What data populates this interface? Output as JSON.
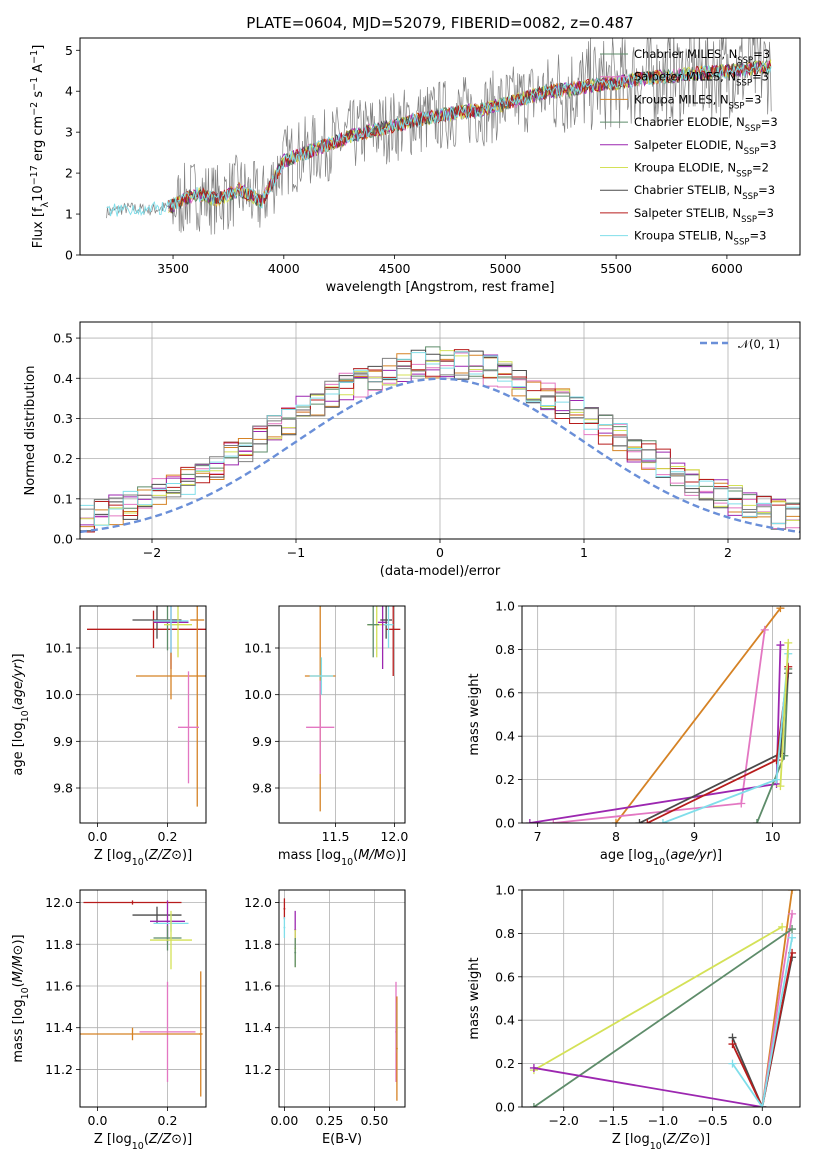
{
  "figure": {
    "title": "PLATE=0604, MJD=52079, FIBERID=0082, z=0.487"
  },
  "colors": [
    "#e377c2",
    "#ff7f0e",
    "#1f77b4",
    "#d62728",
    "#9467bd",
    "#bcbd22",
    "#7f7f7f",
    "#e377c2",
    "#17becf"
  ],
  "chart_data": [
    {
      "id": "spectrum",
      "type": "line",
      "xlabel": "wavelength [Angstrom, rest frame]",
      "ylabel": "Flux [f$_λ$10$^{-17}$ erg cm$^{-2}$ s$^{-1}$ A$^{-1}$]",
      "ylabel_parts": [
        "Flux [f",
        "λ",
        "10",
        "−17",
        " erg cm",
        "−2",
        " s",
        "−1",
        " A",
        "−1",
        "]"
      ],
      "xlim": [
        3080,
        6330
      ],
      "ylim": [
        0,
        5.3
      ],
      "xticks": [
        3500,
        4000,
        4500,
        5000,
        5500,
        6000
      ],
      "xtick_labels": [
        "3500",
        "4000",
        "4500",
        "5000",
        "5500",
        "6000"
      ],
      "yticks": [
        0,
        1,
        2,
        3,
        4,
        5
      ],
      "ytick_labels": [
        "0",
        "1",
        "2",
        "3",
        "4",
        "5"
      ],
      "grid": false,
      "legend_position": "top-right",
      "series": [
        {
          "name": "Chabrier MILES",
          "nssp": "3",
          "color": "#5e8c6a"
        },
        {
          "name": "Salpeter MILES",
          "nssp": "3",
          "color": "#e377c2"
        },
        {
          "name": "Kroupa MILES",
          "nssp": "3",
          "color": "#d58225"
        },
        {
          "name": "Chabrier ELODIE",
          "nssp": "3",
          "color": "#5e8c6a"
        },
        {
          "name": "Salpeter ELODIE",
          "nssp": "3",
          "color": "#9c27b0"
        },
        {
          "name": "Kroupa ELODIE",
          "nssp": "2",
          "color": "#d4e157"
        },
        {
          "name": "Chabrier STELIB",
          "nssp": "3",
          "color": "#4a4a4a"
        },
        {
          "name": "Salpeter STELIB",
          "nssp": "3",
          "color": "#b71c1c"
        },
        {
          "name": "Kroupa STELIB",
          "nssp": "3",
          "color": "#80deea"
        }
      ],
      "model_continuum": {
        "x": [
          3200,
          3300,
          3400,
          3500,
          3600,
          3700,
          3800,
          3900,
          4000,
          4100,
          4200,
          4300,
          4400,
          4500,
          4600,
          4700,
          4800,
          4900,
          5000,
          5100,
          5200,
          5300,
          5400,
          5500,
          5600,
          5700,
          5800,
          5900,
          6000,
          6100,
          6200
        ],
        "y": [
          1.05,
          1.15,
          1.1,
          1.2,
          1.5,
          1.35,
          1.6,
          1.3,
          2.3,
          2.5,
          2.7,
          2.9,
          3.05,
          3.15,
          3.3,
          3.4,
          3.5,
          3.55,
          3.7,
          3.85,
          4.0,
          4.05,
          4.15,
          4.2,
          4.3,
          4.35,
          4.4,
          4.45,
          4.5,
          4.55,
          4.6
        ]
      },
      "data_noise_amplitude": 0.9
    },
    {
      "id": "residuals",
      "type": "bar",
      "xlabel": "(data-model)/error",
      "ylabel": "Normed distribution",
      "xlim": [
        -2.5,
        2.5
      ],
      "ylim": [
        0,
        0.54
      ],
      "xticks": [
        -2,
        -1,
        0,
        1,
        2
      ],
      "xtick_labels": [
        "−2",
        "−1",
        "0",
        "1",
        "2"
      ],
      "yticks": [
        0.0,
        0.1,
        0.2,
        0.3,
        0.4,
        0.5
      ],
      "ytick_labels": [
        "0.0",
        "0.1",
        "0.2",
        "0.3",
        "0.4",
        "0.5"
      ],
      "grid": true,
      "legend": "𝒩(0, 1)",
      "legend_position": "top-right",
      "bin_width": 0.1,
      "bin_start": -2.5,
      "gaussian": {
        "mu": 0,
        "sigma": 1,
        "color": "#6a8fd8"
      }
    },
    {
      "id": "z-age",
      "type": "scatter",
      "xlabel": "Z [log10(Z/Z⊙)]",
      "ylabel": "age  [log10(age/yr)]",
      "xlim": [
        -0.05,
        0.31
      ],
      "ylim": [
        9.725,
        10.19
      ],
      "xticks": [
        0.0,
        0.2
      ],
      "xtick_labels": [
        "0.0",
        "0.2"
      ],
      "yticks": [
        9.8,
        9.9,
        10.0,
        10.1
      ],
      "ytick_labels": [
        "9.8",
        "9.9",
        "10.0",
        "10.1"
      ],
      "grid": true,
      "points": [
        {
          "x": 0.16,
          "y": 10.14,
          "xerr": 0.19,
          "yerr": 0.04,
          "color": "#b71c1c"
        },
        {
          "x": 0.17,
          "y": 10.16,
          "xerr": 0.07,
          "yerr": 0.04,
          "color": "#4a4a4a"
        },
        {
          "x": 0.2,
          "y": 10.155,
          "xerr": 0.04,
          "yerr": 0.06,
          "color": "#5e8c6a"
        },
        {
          "x": 0.21,
          "y": 10.155,
          "xerr": 0.05,
          "yerr": 0.1,
          "color": "#9c27b0"
        },
        {
          "x": 0.23,
          "y": 10.15,
          "xerr": 0.04,
          "yerr": 0.07,
          "color": "#d4e157"
        },
        {
          "x": 0.21,
          "y": 10.158,
          "xerr": 0.05,
          "yerr": 0.07,
          "color": "#80deea"
        },
        {
          "x": 0.21,
          "y": 10.04,
          "xerr": 0.1,
          "yerr": 0.05,
          "color": "#d58225"
        },
        {
          "x": 0.285,
          "y": 10.16,
          "xerr": 0.02,
          "yerr": 0.4,
          "color": "#d58225"
        },
        {
          "x": 0.26,
          "y": 9.93,
          "xerr": 0.03,
          "yerr": 0.12,
          "color": "#e377c2"
        }
      ]
    },
    {
      "id": "mass-age",
      "type": "scatter",
      "xlabel": "mass [log10(M/M⊙)]",
      "ylabel": "",
      "xlim": [
        11.02,
        12.09
      ],
      "ylim": [
        9.725,
        10.19
      ],
      "xticks": [
        11.5,
        12.0
      ],
      "xtick_labels": [
        "11.5",
        "12.0"
      ],
      "yticks": [
        9.8,
        9.9,
        10.0,
        10.1
      ],
      "ytick_labels": [
        "9.8",
        "9.9",
        "10.0",
        "10.1"
      ],
      "grid": true,
      "points": [
        {
          "x": 11.37,
          "y": 10.04,
          "xerr": 0.13,
          "yerr": 0.29,
          "color": "#d58225"
        },
        {
          "x": 11.37,
          "y": 9.93,
          "xerr": 0.12,
          "yerr": 0.1,
          "color": "#e377c2"
        },
        {
          "x": 11.38,
          "y": 10.04,
          "xerr": 0.1,
          "yerr": 0.04,
          "color": "#80deea"
        },
        {
          "x": 11.85,
          "y": 10.15,
          "xerr": 0.08,
          "yerr": 0.07,
          "color": "#d4e157"
        },
        {
          "x": 11.82,
          "y": 10.15,
          "xerr": 0.05,
          "yerr": 0.07,
          "color": "#5e8c6a"
        },
        {
          "x": 11.9,
          "y": 10.155,
          "xerr": 0.04,
          "yerr": 0.1,
          "color": "#9c27b0"
        },
        {
          "x": 11.93,
          "y": 10.16,
          "xerr": 0.05,
          "yerr": 0.04,
          "color": "#4a4a4a"
        },
        {
          "x": 11.99,
          "y": 10.14,
          "xerr": 0.06,
          "yerr": 0.1,
          "color": "#b71c1c"
        },
        {
          "x": 11.95,
          "y": 10.15,
          "xerr": 0.04,
          "yerr": 0.05,
          "color": "#80deea"
        }
      ]
    },
    {
      "id": "age-weight",
      "type": "line",
      "xlabel": "age  [log10(age/yr)]",
      "ylabel": "mass weight",
      "xlim": [
        6.8,
        10.35
      ],
      "ylim": [
        0.0,
        1.0
      ],
      "xticks": [
        7,
        8,
        9,
        10
      ],
      "xtick_labels": [
        "7",
        "8",
        "9",
        "10"
      ],
      "yticks": [
        0.0,
        0.2,
        0.4,
        0.6,
        0.8,
        1.0
      ],
      "ytick_labels": [
        "0.0",
        "0.2",
        "0.4",
        "0.6",
        "0.8",
        "1.0"
      ],
      "grid": true,
      "series": [
        {
          "color": "#d58225",
          "x": [
            8.0,
            10.1
          ],
          "y": [
            0.0,
            0.99
          ]
        },
        {
          "color": "#e377c2",
          "x": [
            7.2,
            9.6,
            9.9
          ],
          "y": [
            0.0,
            0.09,
            0.89
          ]
        },
        {
          "color": "#9c27b0",
          "x": [
            6.9,
            10.05,
            10.1
          ],
          "y": [
            0.0,
            0.18,
            0.82
          ]
        },
        {
          "color": "#5e8c6a",
          "x": [
            9.8,
            10.15,
            10.2
          ],
          "y": [
            0.0,
            0.31,
            0.71
          ]
        },
        {
          "color": "#4a4a4a",
          "x": [
            8.3,
            10.1,
            10.2
          ],
          "y": [
            0.0,
            0.32,
            0.69
          ]
        },
        {
          "color": "#b71c1c",
          "x": [
            8.4,
            10.05,
            10.2
          ],
          "y": [
            0.0,
            0.29,
            0.72
          ]
        },
        {
          "color": "#80deea",
          "x": [
            8.6,
            10.05,
            10.2
          ],
          "y": [
            0.0,
            0.2,
            0.78
          ]
        },
        {
          "color": "#d4e157",
          "x": [
            10.1,
            10.2
          ],
          "y": [
            0.17,
            0.83
          ]
        }
      ]
    },
    {
      "id": "z-mass",
      "type": "scatter",
      "xlabel": "Z [log10(Z/Z⊙)]",
      "ylabel": "mass [log10(M/M⊙)]",
      "xlim": [
        -0.05,
        0.31
      ],
      "ylim": [
        11.02,
        12.06
      ],
      "xticks": [
        0.0,
        0.2
      ],
      "xtick_labels": [
        "0.0",
        "0.2"
      ],
      "yticks": [
        11.2,
        11.4,
        11.6,
        11.8,
        12.0
      ],
      "ytick_labels": [
        "11.2",
        "11.4",
        "11.6",
        "11.8",
        "12.0"
      ],
      "grid": true,
      "points": [
        {
          "x": 0.1,
          "y": 12.0,
          "xerr": 0.14,
          "yerr": 0.01,
          "color": "#b71c1c"
        },
        {
          "x": 0.17,
          "y": 11.94,
          "xerr": 0.07,
          "yerr": 0.04,
          "color": "#4a4a4a"
        },
        {
          "x": 0.2,
          "y": 11.91,
          "xerr": 0.05,
          "yerr": 0.1,
          "color": "#9c27b0"
        },
        {
          "x": 0.21,
          "y": 11.9,
          "xerr": 0.05,
          "yerr": 0.04,
          "color": "#80deea"
        },
        {
          "x": 0.2,
          "y": 11.83,
          "xerr": 0.04,
          "yerr": 0.06,
          "color": "#5e8c6a"
        },
        {
          "x": 0.21,
          "y": 11.82,
          "xerr": 0.06,
          "yerr": 0.14,
          "color": "#d4e157"
        },
        {
          "x": 0.2,
          "y": 11.38,
          "xerr": 0.08,
          "yerr": 0.24,
          "color": "#e377c2"
        },
        {
          "x": 0.1,
          "y": 11.37,
          "xerr": 0.2,
          "yerr": 0.03,
          "color": "#d58225"
        },
        {
          "x": 0.295,
          "y": 11.37,
          "xerr": 0.005,
          "yerr": 0.3,
          "color": "#d58225"
        }
      ]
    },
    {
      "id": "ebv-mass",
      "type": "scatter",
      "xlabel": "E(B-V)",
      "ylabel": "",
      "xlim": [
        -0.03,
        0.67
      ],
      "ylim": [
        11.02,
        12.06
      ],
      "xticks": [
        0.0,
        0.25,
        0.5
      ],
      "xtick_labels": [
        "0.00",
        "0.25",
        "0.50"
      ],
      "yticks": [
        11.2,
        11.4,
        11.6,
        11.8,
        12.0
      ],
      "ytick_labels": [
        "11.2",
        "11.4",
        "11.6",
        "11.8",
        "12.0"
      ],
      "grid": true,
      "points": [
        {
          "x": 0.0,
          "y": 11.97,
          "xerr": 0.005,
          "yerr": 0.05,
          "color": "#b71c1c"
        },
        {
          "x": 0.0,
          "y": 11.88,
          "xerr": 0.005,
          "yerr": 0.05,
          "color": "#80deea"
        },
        {
          "x": 0.06,
          "y": 11.87,
          "xerr": 0.005,
          "yerr": 0.09,
          "color": "#9c27b0"
        },
        {
          "x": 0.06,
          "y": 11.78,
          "xerr": 0.005,
          "yerr": 0.09,
          "color": "#d4e157"
        },
        {
          "x": 0.06,
          "y": 11.76,
          "xerr": 0.005,
          "yerr": 0.07,
          "color": "#5e8c6a"
        },
        {
          "x": 0.62,
          "y": 11.38,
          "xerr": 0.005,
          "yerr": 0.24,
          "color": "#e377c2"
        },
        {
          "x": 0.625,
          "y": 11.4,
          "xerr": 0.005,
          "yerr": 0.12,
          "color": "#80deea"
        },
        {
          "x": 0.625,
          "y": 11.3,
          "xerr": 0.005,
          "yerr": 0.25,
          "color": "#d58225"
        }
      ]
    },
    {
      "id": "z-weight",
      "type": "line",
      "xlabel": "Z [log10(Z/Z⊙)]",
      "ylabel": "mass weight",
      "xlim": [
        -2.42,
        0.38
      ],
      "ylim": [
        0.0,
        1.0
      ],
      "xticks": [
        -2.0,
        -1.5,
        -1.0,
        -0.5,
        0.0
      ],
      "xtick_labels": [
        "−2.0",
        "−1.5",
        "−1.0",
        "−0.5",
        "0.0"
      ],
      "yticks": [
        0.0,
        0.2,
        0.4,
        0.6,
        0.8,
        1.0
      ],
      "ytick_labels": [
        "0.0",
        "0.2",
        "0.4",
        "0.6",
        "0.8",
        "1.0"
      ],
      "grid": true,
      "series": [
        {
          "color": "#d58225",
          "x": [
            0.0,
            0.3
          ],
          "y": [
            0.0,
            1.0
          ]
        },
        {
          "color": "#e377c2",
          "x": [
            0.0,
            0.3
          ],
          "y": [
            0.0,
            0.89
          ]
        },
        {
          "color": "#d4e157",
          "x": [
            -2.3,
            0.2
          ],
          "y": [
            0.17,
            0.83
          ]
        },
        {
          "color": "#5e8c6a",
          "x": [
            -2.3,
            0.3
          ],
          "y": [
            0.0,
            0.82
          ]
        },
        {
          "color": "#9c27b0",
          "x": [
            -2.3,
            0.0
          ],
          "y": [
            0.18,
            0.0
          ]
        },
        {
          "color": "#4a4a4a",
          "x": [
            -0.3,
            0.0,
            0.3
          ],
          "y": [
            0.32,
            0.0,
            0.69
          ]
        },
        {
          "color": "#b71c1c",
          "x": [
            -0.3,
            0.0,
            0.3
          ],
          "y": [
            0.29,
            0.0,
            0.71
          ]
        },
        {
          "color": "#80deea",
          "x": [
            -0.3,
            0.0,
            0.3
          ],
          "y": [
            0.2,
            0.0,
            0.78
          ]
        }
      ]
    }
  ]
}
